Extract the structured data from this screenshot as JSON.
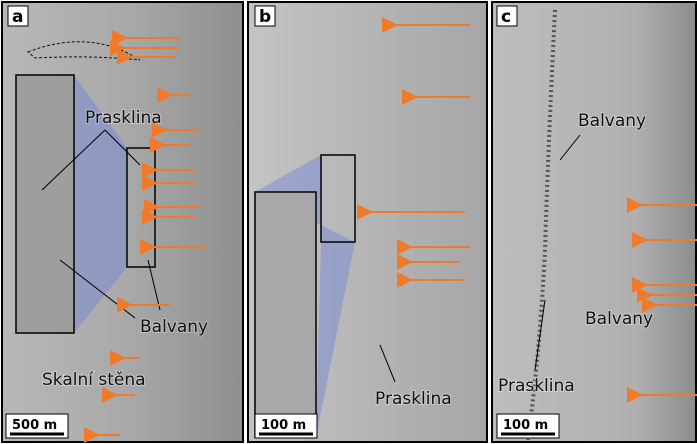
{
  "panels": [
    {
      "letter": "a",
      "labels": [
        "Prasklina",
        "Balvany",
        "Skalní stěna"
      ],
      "scale": "500 m"
    },
    {
      "letter": "b",
      "labels": [
        "Prasklina"
      ],
      "scale": "100 m"
    },
    {
      "letter": "c",
      "labels": [
        "Balvany",
        "Balvany",
        "Prasklina"
      ],
      "scale": "100 m"
    }
  ]
}
